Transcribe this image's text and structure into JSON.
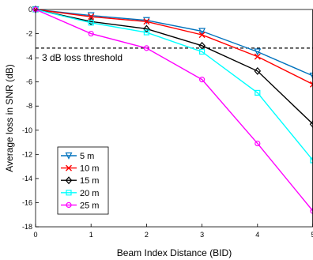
{
  "chart_data": {
    "type": "line",
    "xlabel": "Beam Index Distance (BID)",
    "ylabel": "Average loss in SNR (dB)",
    "xlim": [
      0,
      5
    ],
    "ylim": [
      -18,
      0
    ],
    "xticks": [
      "0",
      "1",
      "2",
      "3",
      "4",
      "5"
    ],
    "yticks": [
      "0",
      "-2",
      "-4",
      "-6",
      "-8",
      "-10",
      "-12",
      "-14",
      "-16",
      "-18"
    ],
    "x": [
      0,
      1,
      2,
      3,
      4,
      5
    ],
    "threshold": {
      "y": -3.2,
      "label": "3 dB loss threshold"
    },
    "legend_position": "lower-left",
    "series": [
      {
        "name": "5 m",
        "color": "#0072BD",
        "marker": "triangle-down",
        "values": [
          0,
          -0.5,
          -0.9,
          -1.8,
          -3.5,
          -5.5
        ]
      },
      {
        "name": "10 m",
        "color": "#FF0000",
        "marker": "x",
        "values": [
          0,
          -0.6,
          -1.0,
          -2.1,
          -3.9,
          -6.2
        ]
      },
      {
        "name": "15 m",
        "color": "#000000",
        "marker": "diamond",
        "values": [
          0,
          -1.0,
          -1.6,
          -3.0,
          -5.1,
          -9.5
        ]
      },
      {
        "name": "20 m",
        "color": "#00FFFF",
        "marker": "square",
        "values": [
          0,
          -1.1,
          -1.9,
          -3.5,
          -6.9,
          -12.5
        ]
      },
      {
        "name": "25 m",
        "color": "#FF00FF",
        "marker": "circle",
        "values": [
          0,
          -2.0,
          -3.2,
          -5.8,
          -11.1,
          -16.7
        ]
      }
    ]
  }
}
